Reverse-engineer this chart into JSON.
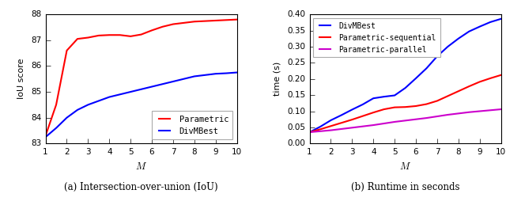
{
  "left": {
    "M": [
      1,
      1.5,
      2,
      2.5,
      3,
      3.5,
      4,
      4.5,
      5,
      5.5,
      6,
      6.5,
      7,
      7.5,
      8,
      8.5,
      9,
      9.5,
      10
    ],
    "parametric": [
      83.3,
      84.5,
      86.6,
      87.05,
      87.1,
      87.18,
      87.2,
      87.2,
      87.15,
      87.22,
      87.38,
      87.52,
      87.62,
      87.67,
      87.72,
      87.74,
      87.76,
      87.78,
      87.8
    ],
    "divmbest": [
      83.25,
      83.6,
      84.0,
      84.3,
      84.5,
      84.65,
      84.8,
      84.9,
      85.0,
      85.1,
      85.2,
      85.3,
      85.4,
      85.5,
      85.6,
      85.65,
      85.7,
      85.72,
      85.75
    ],
    "parametric_color": "#ff0000",
    "divmbest_color": "#0000ff",
    "ylabel": "IoU score",
    "xlabel": "M",
    "ylim": [
      83,
      88
    ],
    "yticks": [
      83,
      84,
      85,
      86,
      87,
      88
    ],
    "xlim": [
      1,
      10
    ],
    "xticks": [
      1,
      2,
      3,
      4,
      5,
      6,
      7,
      8,
      9,
      10
    ],
    "legend_parametric": "Parametric",
    "legend_divmbest": "DivMBest",
    "caption": "(a) Intersection-over-union (IoU)"
  },
  "right": {
    "M": [
      1,
      1.5,
      2,
      2.5,
      3,
      3.5,
      4,
      4.5,
      5,
      5.5,
      6,
      6.5,
      7,
      7.5,
      8,
      8.5,
      9,
      9.5,
      10
    ],
    "divmbest": [
      0.035,
      0.052,
      0.072,
      0.088,
      0.105,
      0.121,
      0.14,
      0.145,
      0.149,
      0.172,
      0.202,
      0.233,
      0.27,
      0.3,
      0.325,
      0.347,
      0.362,
      0.376,
      0.386
    ],
    "parametric_seq": [
      0.035,
      0.044,
      0.054,
      0.064,
      0.074,
      0.085,
      0.096,
      0.106,
      0.112,
      0.113,
      0.116,
      0.122,
      0.132,
      0.147,
      0.162,
      0.177,
      0.191,
      0.202,
      0.212
    ],
    "parametric_par": [
      0.035,
      0.038,
      0.041,
      0.045,
      0.049,
      0.053,
      0.057,
      0.062,
      0.067,
      0.071,
      0.075,
      0.079,
      0.084,
      0.089,
      0.093,
      0.097,
      0.1,
      0.103,
      0.106
    ],
    "divmbest_color": "#0000ff",
    "parametric_seq_color": "#ff0000",
    "parametric_par_color": "#cc00cc",
    "ylabel": "time (s)",
    "xlabel": "M",
    "ylim": [
      0.0,
      0.4
    ],
    "yticks": [
      0.0,
      0.05,
      0.1,
      0.15,
      0.2,
      0.25,
      0.3,
      0.35,
      0.4
    ],
    "xlim": [
      1,
      10
    ],
    "xticks": [
      1,
      2,
      3,
      4,
      5,
      6,
      7,
      8,
      9,
      10
    ],
    "legend_divmbest": "DivMBest",
    "legend_seq": "Parametric-sequential",
    "legend_par": "Parametric-parallel",
    "caption": "(b) Runtime in seconds"
  },
  "plot_bg": "#ffffff",
  "fig_bg": "#ffffff"
}
